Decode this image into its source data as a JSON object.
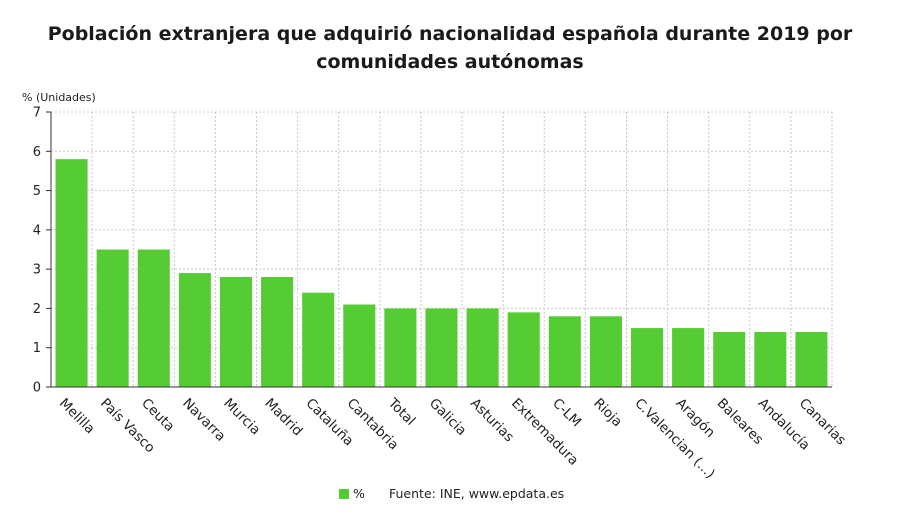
{
  "chart_data": {
    "type": "bar",
    "title": "Población extranjera que adquirió nacionalidad española durante 2019 por comunidades autónomas",
    "title_lines": [
      "Población extranjera que adquirió nacionalidad española durante 2019 por",
      "comunidades autónomas"
    ],
    "ylabel": "% (Unidades)",
    "ylim": [
      0,
      7
    ],
    "yticks": [
      0,
      1,
      2,
      3,
      4,
      5,
      6,
      7
    ],
    "grid": true,
    "bar_color": "#55cc33",
    "categories": [
      "Melilla",
      "País Vasco",
      "Ceuta",
      "Navarra",
      "Murcia",
      "Madrid",
      "Cataluña",
      "Cantabria",
      "Total",
      "Galicia",
      "Asturias",
      "Extremadura",
      "C-LM",
      "Rioja",
      "C.Valencian (...)",
      "Aragón",
      "Baleares",
      "Andalucía",
      "Canarias"
    ],
    "series": [
      {
        "name": "%",
        "values": [
          5.8,
          3.5,
          3.5,
          2.9,
          2.8,
          2.8,
          2.4,
          2.1,
          2.0,
          2.0,
          2.0,
          1.9,
          1.8,
          1.8,
          1.5,
          1.5,
          1.4,
          1.4,
          1.4
        ]
      }
    ],
    "legend": {
      "position": "bottom",
      "label": "%"
    },
    "source": "Fuente: INE, www.epdata.es"
  }
}
